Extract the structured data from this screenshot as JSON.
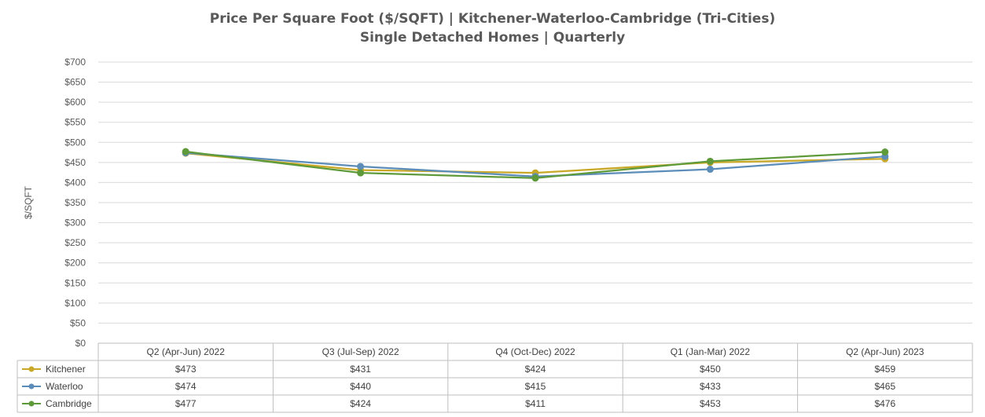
{
  "chart_data": {
    "type": "line",
    "title": "Price Per Square Foot ($/SQFT) | Kitchener-Waterloo-Cambridge (Tri-Cities)",
    "subtitle": "Single Detached Homes | Quarterly",
    "ylabel": "$/SQFT",
    "xlabel": "",
    "ylim": [
      0,
      700
    ],
    "ytick_step": 50,
    "yticks": [
      "$0",
      "$50",
      "$100",
      "$150",
      "$200",
      "$250",
      "$300",
      "$350",
      "$400",
      "$450",
      "$500",
      "$550",
      "$600",
      "$650",
      "$700"
    ],
    "grid": true,
    "legend": "data-table",
    "categories": [
      "Q2 (Apr-Jun) 2022",
      "Q3 (Jul-Sep) 2022",
      "Q4 (Oct-Dec) 2022",
      "Q1 (Jan-Mar) 2022",
      "Q2 (Apr-Jun) 2023"
    ],
    "series": [
      {
        "name": "Kitchener",
        "color": "#C9A827",
        "values": [
          473,
          431,
          424,
          450,
          459
        ],
        "labels": [
          "$473",
          "$431",
          "$424",
          "$450",
          "$459"
        ]
      },
      {
        "name": "Waterloo",
        "color": "#5B8DB8",
        "values": [
          474,
          440,
          415,
          433,
          465
        ],
        "labels": [
          "$474",
          "$440",
          "$415",
          "$433",
          "$465"
        ]
      },
      {
        "name": "Cambridge",
        "color": "#5E9A3A",
        "values": [
          477,
          424,
          411,
          453,
          476
        ],
        "labels": [
          "$477",
          "$424",
          "$411",
          "$453",
          "$476"
        ]
      }
    ]
  }
}
